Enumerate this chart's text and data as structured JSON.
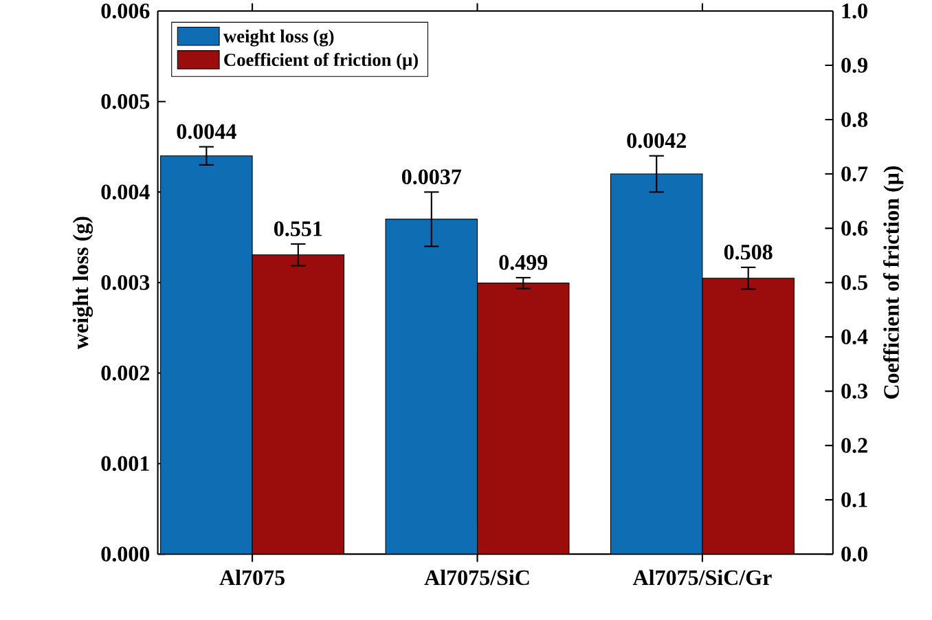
{
  "chart_data": {
    "type": "bar",
    "categories": [
      "Al7075",
      "Al7075/SiC",
      "Al7075/SiC/Gr"
    ],
    "series": [
      {
        "name": "weight loss  (g)",
        "color": "#0f6db4",
        "values": [
          0.0044,
          0.0037,
          0.0042
        ],
        "errors": [
          0.0001,
          0.0003,
          0.0002
        ]
      },
      {
        "name": "Coefficient of friction (μ)",
        "color": "#9b0d0d",
        "values": [
          0.551,
          0.499,
          0.508
        ],
        "errors": [
          0.02,
          0.01,
          0.02
        ],
        "axis": "y2"
      }
    ],
    "ylabel": "weight loss  (g)",
    "y2label": "Coefficient of friction (μ)",
    "ylim": [
      0,
      0.006
    ],
    "yticks": [
      {
        "value": 0,
        "label": "0.000"
      },
      {
        "value": 0.001,
        "label": "0.001"
      },
      {
        "value": 0.002,
        "label": "0.002"
      },
      {
        "value": 0.003,
        "label": "0.003"
      },
      {
        "value": 0.004,
        "label": "0.004"
      },
      {
        "value": 0.005,
        "label": "0.005"
      },
      {
        "value": 0.006,
        "label": "0.006"
      }
    ],
    "y2lim": [
      0,
      1.0
    ],
    "y2ticks": [
      {
        "value": 0,
        "label": "0.0"
      },
      {
        "value": 0.1,
        "label": "0.1"
      },
      {
        "value": 0.2,
        "label": "0.2"
      },
      {
        "value": 0.3,
        "label": "0.3"
      },
      {
        "value": 0.4,
        "label": "0.4"
      },
      {
        "value": 0.5,
        "label": "0.5"
      },
      {
        "value": 0.6,
        "label": "0.6"
      },
      {
        "value": 0.7,
        "label": "0.7"
      },
      {
        "value": 0.8,
        "label": "0.8"
      },
      {
        "value": 0.9,
        "label": "0.9"
      },
      {
        "value": 1.0,
        "label": "1.0"
      }
    ],
    "data_labels": true,
    "legend": "top left",
    "grid": false
  }
}
